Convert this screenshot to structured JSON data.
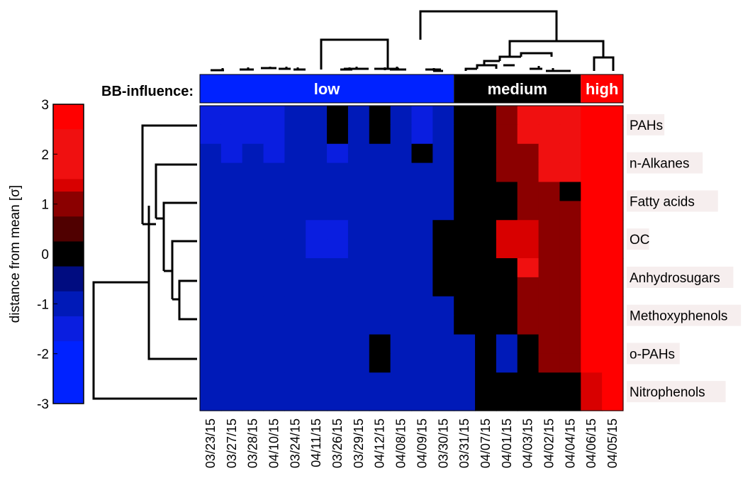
{
  "chart_data": {
    "type": "heatmap",
    "title": "",
    "colorbar": {
      "label": "distance from mean [σ]",
      "range": [
        -3,
        3
      ],
      "ticks": [
        "3",
        "2",
        "1",
        "0",
        "-1",
        "-2",
        "-3"
      ],
      "levels": [
        {
          "from": 2.5,
          "to": 3.0,
          "color": "#ff0000"
        },
        {
          "from": 1.5,
          "to": 2.5,
          "color": "#f01010"
        },
        {
          "from": 1.25,
          "to": 1.5,
          "color": "#d80000"
        },
        {
          "from": 0.75,
          "to": 1.25,
          "color": "#8b0000"
        },
        {
          "from": 0.25,
          "to": 0.75,
          "color": "#500000"
        },
        {
          "from": -0.25,
          "to": 0.25,
          "color": "#000000"
        },
        {
          "from": -0.75,
          "to": -0.25,
          "color": "#000c80"
        },
        {
          "from": -1.25,
          "to": -0.75,
          "color": "#001ab8"
        },
        {
          "from": -1.75,
          "to": -1.25,
          "color": "#0a1ee0"
        },
        {
          "from": -3.0,
          "to": -1.75,
          "color": "#0022ff"
        }
      ]
    },
    "row_labels": [
      "PAHs",
      "n-Alkanes",
      "Fatty acids",
      "OC",
      "Anhydrosugars",
      "Methoxyphenols",
      "o-PAHs",
      "Nitrophenols"
    ],
    "col_labels": [
      "03/23/15",
      "03/27/15",
      "03/28/15",
      "04/10/15",
      "03/24/15",
      "04/11/15",
      "03/26/15",
      "03/29/15",
      "04/12/15",
      "04/08/15",
      "04/09/15",
      "03/30/15",
      "03/31/15",
      "04/07/15",
      "04/01/15",
      "04/03/15",
      "04/02/15",
      "04/04/15",
      "04/06/15",
      "04/05/15"
    ],
    "groups": {
      "title": "BB-influence:",
      "items": [
        {
          "name": "low",
          "span": [
            0,
            11
          ],
          "color": "#0022ff"
        },
        {
          "name": "medium",
          "span": [
            12,
            17
          ],
          "color": "#000000"
        },
        {
          "name": "high",
          "span": [
            18,
            19
          ],
          "color": "#ff0000"
        }
      ]
    },
    "cells": {
      "PAHs": [
        [
          -1.5,
          -1.5,
          -1.5,
          -1.5,
          -1.2,
          -1.2,
          0.0,
          -1.2,
          0.0,
          -1.2,
          -1.5,
          -1.2,
          0.0,
          0.0,
          1.0,
          2.0,
          2.0,
          2.0,
          2.8,
          2.8
        ],
        [
          -1.5,
          -1.5,
          -1.5,
          -1.5,
          -1.2,
          -1.2,
          0.0,
          -1.2,
          0.0,
          -1.2,
          -1.5,
          -1.2,
          0.0,
          0.0,
          1.0,
          2.0,
          2.0,
          2.0,
          2.8,
          2.8
        ]
      ],
      "n-Alkanes": [
        [
          -1.2,
          -1.5,
          -1.2,
          -1.5,
          -1.2,
          -1.2,
          -1.5,
          -1.2,
          -1.2,
          -1.2,
          0.0,
          -1.2,
          0.0,
          0.0,
          1.0,
          1.0,
          2.0,
          2.0,
          2.8,
          2.6
        ],
        [
          -1.2,
          -1.2,
          -1.2,
          -1.2,
          -1.2,
          -1.2,
          -1.2,
          -1.2,
          -1.2,
          -1.2,
          -1.2,
          -1.2,
          0.0,
          0.0,
          1.0,
          1.0,
          2.0,
          2.0,
          2.8,
          2.6
        ]
      ],
      "Fatty acids": [
        [
          -1.2,
          -1.2,
          -1.2,
          -1.2,
          -1.2,
          -1.2,
          -1.2,
          -1.2,
          -1.2,
          -1.2,
          -1.2,
          -1.2,
          0.0,
          0.0,
          0.0,
          1.0,
          1.0,
          0.0,
          2.8,
          2.8
        ],
        [
          -1.2,
          -1.2,
          -1.2,
          -1.2,
          -1.2,
          -1.2,
          -1.2,
          -1.2,
          -1.2,
          -1.2,
          -1.2,
          -1.2,
          0.0,
          0.0,
          0.0,
          1.0,
          1.0,
          1.0,
          2.8,
          2.8
        ]
      ],
      "OC": [
        [
          -1.2,
          -1.2,
          -1.2,
          -1.2,
          -1.2,
          -1.5,
          -1.5,
          -1.2,
          -1.2,
          -1.2,
          -1.2,
          0.0,
          0.0,
          0.0,
          1.3,
          1.3,
          1.0,
          1.0,
          2.8,
          2.8
        ],
        [
          -1.2,
          -1.2,
          -1.2,
          -1.2,
          -1.2,
          -1.5,
          -1.5,
          -1.2,
          -1.2,
          -1.2,
          -1.2,
          0.0,
          0.0,
          0.0,
          1.3,
          1.3,
          1.0,
          1.0,
          2.8,
          2.8
        ]
      ],
      "Anhydrosugars": [
        [
          -1.2,
          -1.2,
          -1.2,
          -1.2,
          -1.2,
          -1.2,
          -1.2,
          -1.2,
          -1.2,
          -1.2,
          -1.2,
          0.0,
          0.0,
          0.0,
          0.0,
          2.0,
          1.0,
          1.0,
          2.8,
          2.8
        ],
        [
          -1.2,
          -1.2,
          -1.2,
          -1.2,
          -1.2,
          -1.2,
          -1.2,
          -1.2,
          -1.2,
          -1.2,
          -1.2,
          0.0,
          0.0,
          0.0,
          0.0,
          1.0,
          1.0,
          1.0,
          2.8,
          2.8
        ]
      ],
      "Methoxyphenols": [
        [
          -1.2,
          -1.2,
          -1.2,
          -1.2,
          -1.2,
          -1.2,
          -1.2,
          -1.2,
          -1.2,
          -1.2,
          -1.2,
          -1.2,
          0.0,
          0.0,
          0.0,
          1.0,
          1.0,
          1.0,
          2.8,
          2.8
        ],
        [
          -1.2,
          -1.2,
          -1.2,
          -1.2,
          -1.2,
          -1.2,
          -1.2,
          -1.2,
          -1.2,
          -1.2,
          -1.2,
          -1.2,
          0.0,
          0.0,
          0.0,
          1.0,
          1.0,
          1.0,
          2.8,
          2.8
        ]
      ],
      "o-PAHs": [
        [
          -1.2,
          -1.2,
          -1.2,
          -1.2,
          -1.2,
          -1.2,
          -1.2,
          -1.2,
          0.0,
          -1.2,
          -1.2,
          -1.2,
          -1.2,
          0.0,
          -1.0,
          0.0,
          1.0,
          1.0,
          2.8,
          2.8
        ],
        [
          -1.2,
          -1.2,
          -1.2,
          -1.2,
          -1.2,
          -1.2,
          -1.2,
          -1.2,
          0.0,
          -1.2,
          -1.2,
          -1.2,
          -1.2,
          0.0,
          -1.0,
          0.0,
          1.0,
          1.0,
          2.8,
          2.8
        ]
      ],
      "Nitrophenols": [
        [
          -1.2,
          -1.2,
          -1.2,
          -1.2,
          -1.2,
          -1.2,
          -1.2,
          -1.2,
          -1.2,
          -1.2,
          -1.2,
          -1.2,
          -1.2,
          0.0,
          0.0,
          0.0,
          0.0,
          0.0,
          1.3,
          2.8
        ],
        [
          -1.2,
          -1.2,
          -1.2,
          -1.2,
          -1.2,
          -1.2,
          -1.2,
          -1.2,
          -1.2,
          -1.2,
          -1.2,
          -1.2,
          -1.2,
          0.0,
          0.0,
          0.0,
          0.0,
          0.0,
          1.3,
          2.8
        ]
      ]
    }
  }
}
